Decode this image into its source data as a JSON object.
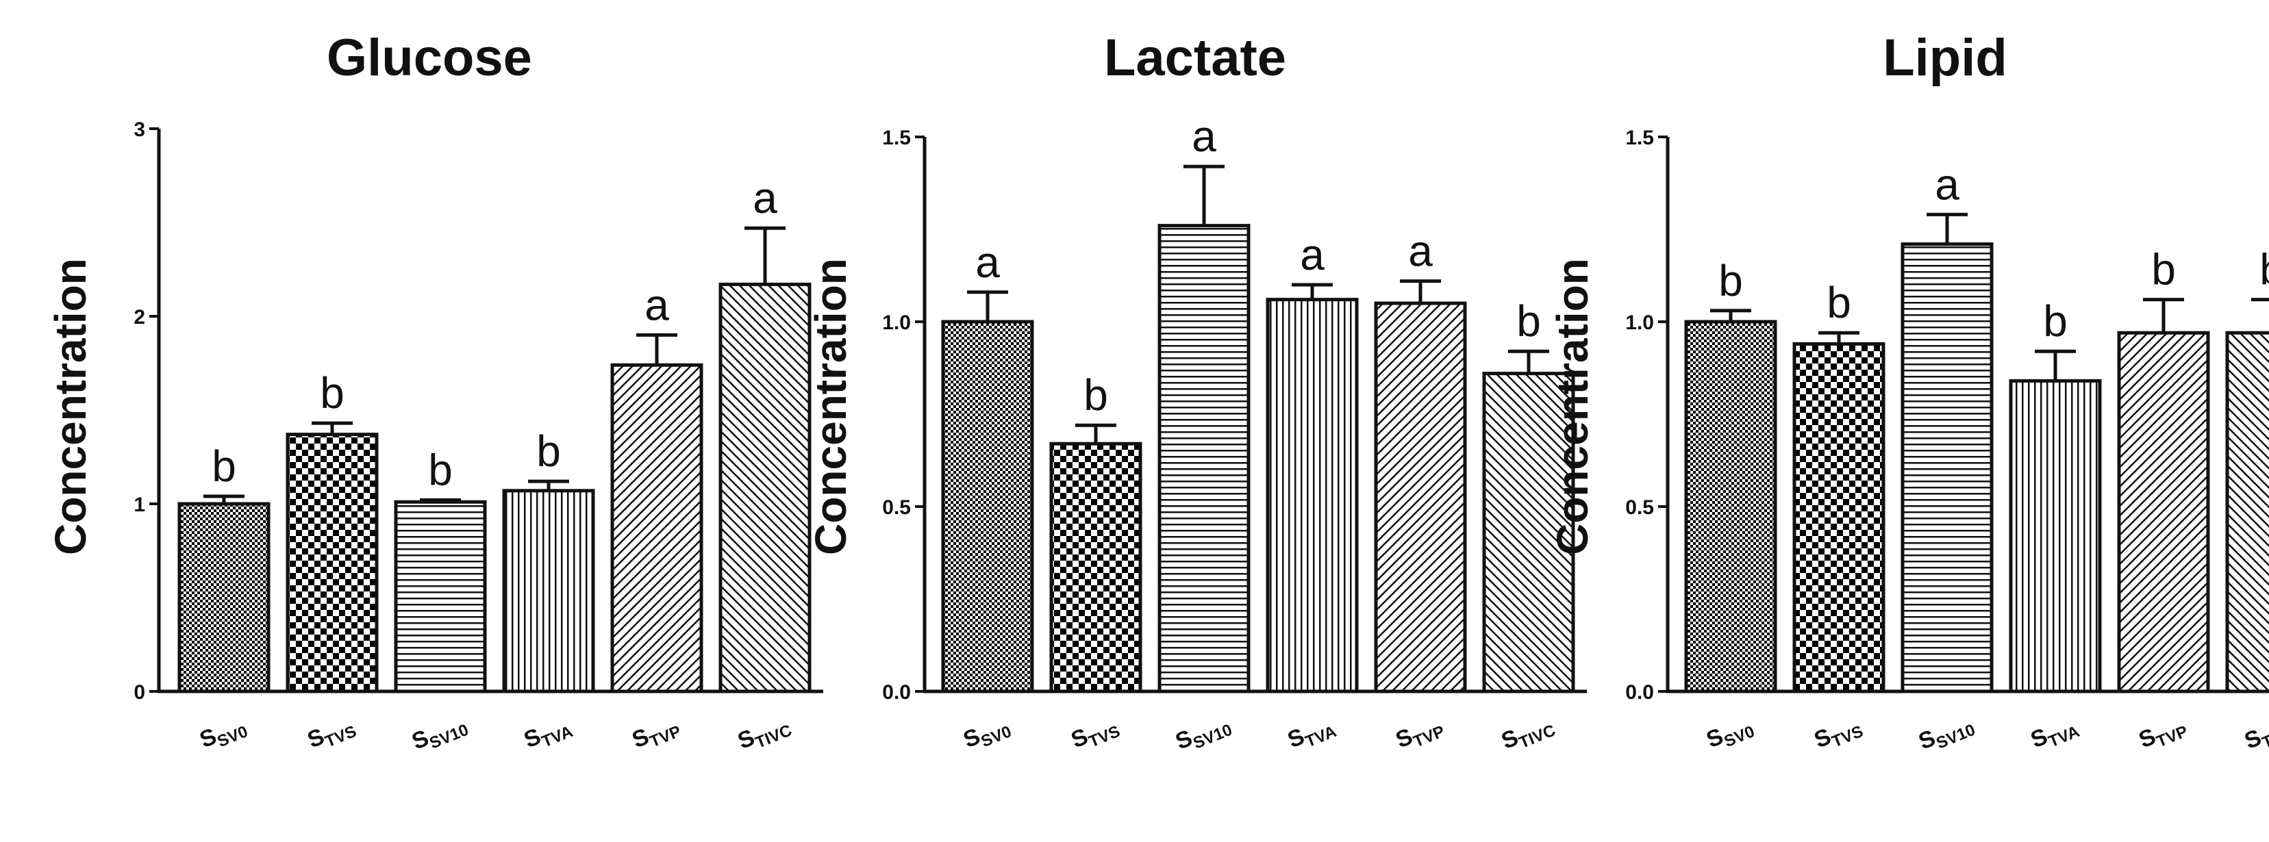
{
  "chart_data": [
    {
      "type": "bar",
      "title": "Glucose",
      "ylabel": "Concentration",
      "xlabel": "",
      "ylim": [
        0,
        3
      ],
      "yticks": [
        "0",
        "1",
        "2",
        "3"
      ],
      "categories": [
        {
          "main": "S",
          "sub": "SV0"
        },
        {
          "main": "S",
          "sub": "TVS"
        },
        {
          "main": "S",
          "sub": "SV10"
        },
        {
          "main": "S",
          "sub": "TVA"
        },
        {
          "main": "S",
          "sub": "TVP"
        },
        {
          "main": "S",
          "sub": "TIVC"
        }
      ],
      "values": [
        1.0,
        1.37,
        1.01,
        1.07,
        1.74,
        2.17
      ],
      "errors": [
        0.04,
        0.06,
        0.01,
        0.05,
        0.16,
        0.3
      ],
      "letters": [
        "b",
        "b",
        "b",
        "b",
        "a",
        "a"
      ],
      "patterns": [
        "dense-check",
        "checker",
        "hlines",
        "vlines",
        "diag-fwd",
        "diag-back"
      ]
    },
    {
      "type": "bar",
      "title": "Lactate",
      "ylabel": "Concentration",
      "xlabel": "",
      "ylim": [
        0,
        1.5
      ],
      "yticks": [
        "0.0",
        "0.5",
        "1.0",
        "1.5"
      ],
      "categories": [
        {
          "main": "S",
          "sub": "SV0"
        },
        {
          "main": "S",
          "sub": "TVS"
        },
        {
          "main": "S",
          "sub": "SV10"
        },
        {
          "main": "S",
          "sub": "TVA"
        },
        {
          "main": "S",
          "sub": "TVP"
        },
        {
          "main": "S",
          "sub": "TIVC"
        }
      ],
      "values": [
        1.0,
        0.67,
        1.26,
        1.06,
        1.05,
        0.86
      ],
      "errors": [
        0.08,
        0.05,
        0.16,
        0.04,
        0.06,
        0.06
      ],
      "letters": [
        "a",
        "b",
        "a",
        "a",
        "a",
        "b"
      ],
      "patterns": [
        "dense-check",
        "checker",
        "hlines",
        "vlines",
        "diag-fwd",
        "diag-back"
      ]
    },
    {
      "type": "bar",
      "title": "Lipid",
      "ylabel": "Concentration",
      "xlabel": "",
      "ylim": [
        0,
        1.5
      ],
      "yticks": [
        "0.0",
        "0.5",
        "1.0",
        "1.5"
      ],
      "categories": [
        {
          "main": "S",
          "sub": "SV0"
        },
        {
          "main": "S",
          "sub": "TVS"
        },
        {
          "main": "S",
          "sub": "SV10"
        },
        {
          "main": "S",
          "sub": "TVA"
        },
        {
          "main": "S",
          "sub": "TVP"
        },
        {
          "main": "S",
          "sub": "TIVC"
        }
      ],
      "values": [
        1.0,
        0.94,
        1.21,
        0.84,
        0.97,
        0.97
      ],
      "errors": [
        0.03,
        0.03,
        0.08,
        0.08,
        0.09,
        0.09
      ],
      "letters": [
        "b",
        "b",
        "a",
        "b",
        "b",
        "b"
      ],
      "patterns": [
        "dense-check",
        "checker",
        "hlines",
        "vlines",
        "diag-fwd",
        "diag-back"
      ]
    }
  ]
}
